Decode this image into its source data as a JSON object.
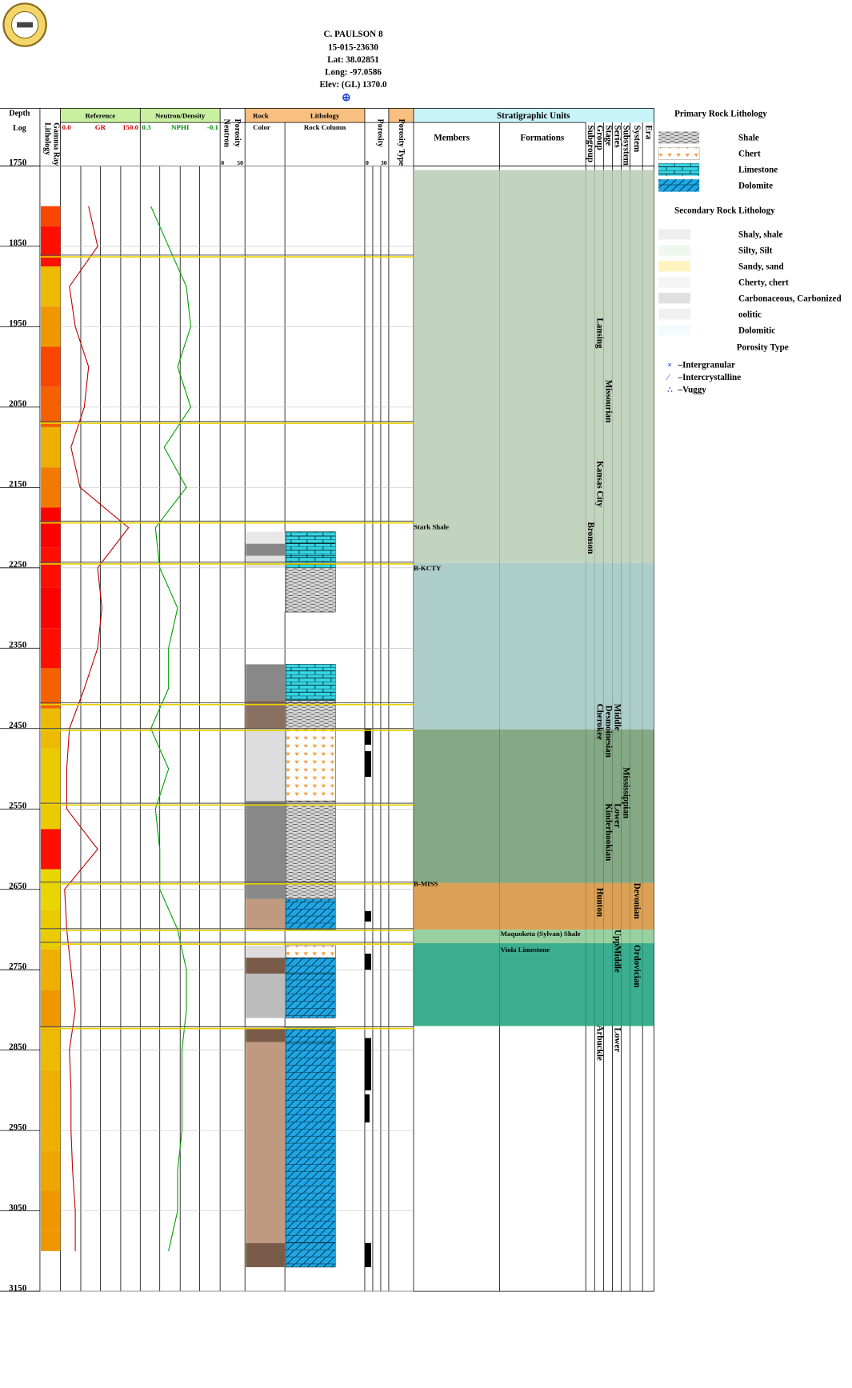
{
  "header": {
    "well": "C. PAULSON 8",
    "api": "15-015-23630",
    "lat": "Lat: 38.02851",
    "long": "Long: -97.0586",
    "elev": "Elev: (GL) 1370.0",
    "marker": "⊕"
  },
  "tracks": {
    "depth": [
      "Depth",
      "Log"
    ],
    "gamma": [
      "Lithology",
      "Gamma Ray"
    ],
    "reference": {
      "title": "Reference",
      "min": "0.0",
      "curve": "GR",
      "max": "150.0"
    },
    "neutron": {
      "title": "Neutron/Density",
      "min": "0.3",
      "curve": "NPHI",
      "max": "-0.1"
    },
    "nporosity": {
      "title": [
        "Neutron",
        "Porosity"
      ],
      "min": "0",
      "max": "50"
    },
    "rock": {
      "title": "Rock",
      "sub": "Color"
    },
    "lithology": {
      "title": "Lithology",
      "sub": "Rock Column"
    },
    "porosity": {
      "title": "Porosity",
      "min": "0",
      "max": "30"
    },
    "ptype": "Porosity Type",
    "strat": {
      "title": "Stratigraphic Units",
      "members": "Members",
      "formations": "Formations"
    }
  },
  "depth_range": [
    1750,
    3150
  ],
  "depth_ticks": [
    1750,
    1850,
    1950,
    2050,
    2150,
    2250,
    2350,
    2450,
    2550,
    2650,
    2750,
    2850,
    2950,
    3050,
    3150
  ],
  "gr_range": [
    0,
    150
  ],
  "nphi_range": [
    0.3,
    -0.1
  ],
  "porosity_range": [
    0,
    30
  ],
  "log": {
    "depths": [
      1800,
      1850,
      1900,
      1950,
      2000,
      2050,
      2100,
      2150,
      2200,
      2250,
      2300,
      2350,
      2400,
      2450,
      2500,
      2550,
      2600,
      2650,
      2700,
      2750,
      2800,
      2850,
      2900,
      2950,
      3000,
      3050,
      3100
    ],
    "gr": [
      53,
      70,
      17,
      28,
      53,
      45,
      20,
      37,
      128,
      70,
      78,
      70,
      45,
      17,
      12,
      12,
      70,
      8,
      12,
      20,
      28,
      17,
      20,
      20,
      23,
      28,
      28
    ],
    "nphi": [
      0.247,
      0.158,
      0.069,
      0.047,
      0.113,
      0.047,
      0.18,
      0.069,
      0.224,
      0.202,
      0.113,
      0.158,
      0.158,
      0.247,
      0.158,
      0.224,
      0.202,
      0.202,
      0.113,
      0.069,
      0.069,
      0.091,
      0.091,
      0.091,
      0.113,
      0.113,
      0.158
    ]
  },
  "tops": [
    1862,
    2069,
    2193,
    2244,
    2419,
    2451,
    2544,
    2642,
    2700,
    2717,
    2822
  ],
  "rock_column": [
    {
      "top": 2205,
      "base": 2220,
      "lith": "limestone",
      "color": "#e8e8e8"
    },
    {
      "top": 2220,
      "base": 2235,
      "lith": "limestone",
      "color": "#888888"
    },
    {
      "top": 2235,
      "base": 2250,
      "lith": "limestone",
      "color": "#e0e0e0"
    },
    {
      "top": 2250,
      "base": 2305,
      "lith": "shale",
      "color": "#ffffff"
    },
    {
      "top": 2370,
      "base": 2415,
      "lith": "limestone",
      "color": "#888888"
    },
    {
      "top": 2415,
      "base": 2450,
      "lith": "shale",
      "color": "#8a7060"
    },
    {
      "top": 2450,
      "base": 2540,
      "lith": "chert",
      "color": "#dddddd"
    },
    {
      "top": 2540,
      "base": 2662,
      "lith": "shale",
      "color": "#888888"
    },
    {
      "top": 2662,
      "base": 2700,
      "lith": "dolomite",
      "color": "#c09a80"
    },
    {
      "top": 2720,
      "base": 2735,
      "lith": "chert",
      "color": "#dddddd"
    },
    {
      "top": 2735,
      "base": 2755,
      "lith": "dolomite",
      "color": "#7a5a48"
    },
    {
      "top": 2755,
      "base": 2810,
      "lith": "dolomite",
      "color": "#bbbbbb"
    },
    {
      "top": 2822,
      "base": 2840,
      "lith": "dolomite",
      "color": "#7a5a48"
    },
    {
      "top": 2840,
      "base": 3090,
      "lith": "dolomite",
      "color": "#c09a80"
    },
    {
      "top": 3090,
      "base": 3120,
      "lith": "dolomite",
      "color": "#7a5a48"
    }
  ],
  "porosity_bars": [
    {
      "top": 2450,
      "base": 2470,
      "value": 8
    },
    {
      "top": 2478,
      "base": 2510,
      "value": 8
    },
    {
      "top": 2677,
      "base": 2690,
      "value": 8
    },
    {
      "top": 2730,
      "base": 2750,
      "value": 8
    },
    {
      "top": 2835,
      "base": 2900,
      "value": 8
    },
    {
      "top": 2905,
      "base": 2940,
      "value": 6
    },
    {
      "top": 3090,
      "base": 3120,
      "value": 8
    }
  ],
  "zones": [
    {
      "top": 1755,
      "base": 2244,
      "color": "#b7cbb3"
    },
    {
      "top": 2244,
      "base": 2451,
      "color": "#9fc4c0"
    },
    {
      "top": 2451,
      "base": 2642,
      "color": "#6e9a6e"
    },
    {
      "top": 2642,
      "base": 2700,
      "color": "#d4903a"
    },
    {
      "top": 2700,
      "base": 2717,
      "color": "#86c98e"
    },
    {
      "top": 2717,
      "base": 2820,
      "color": "#18a07a"
    }
  ],
  "members": [
    {
      "name": "Stark Shale",
      "depth": 2200
    },
    {
      "name": "B-KCTY",
      "depth": 2251
    },
    {
      "name": "B-MISS",
      "depth": 2644
    }
  ],
  "formations": [
    {
      "name": "Maquoketa (Sylvan) Shale",
      "depth": 2706
    },
    {
      "name": "Viola Limestone",
      "depth": 2726
    }
  ],
  "strat_columns": [
    {
      "name": "Subgroup",
      "units": [
        {
          "name": "Bronson",
          "top": 2193
        }
      ]
    },
    {
      "name": "Group",
      "units": [
        {
          "name": "Lansing",
          "top": 1939
        },
        {
          "name": "Kansas City",
          "top": 2117
        },
        {
          "name": "Cherokee",
          "top": 2419
        },
        {
          "name": "Hunton",
          "top": 2648
        },
        {
          "name": "Arbuckle",
          "top": 2819
        }
      ]
    },
    {
      "name": "Stage",
      "units": [
        {
          "name": "Missourian",
          "top": 2016
        },
        {
          "name": "Desmoinesian",
          "top": 2421
        },
        {
          "name": "Kinderhookian",
          "top": 2543
        }
      ]
    },
    {
      "name": "Series",
      "units": [
        {
          "name": "Middle",
          "top": 2419
        },
        {
          "name": "Lower",
          "top": 2543
        },
        {
          "name": "Upp",
          "top": 2700
        },
        {
          "name": "Middle",
          "top": 2720
        },
        {
          "name": "Lower",
          "top": 2822
        }
      ]
    },
    {
      "name": "Subsystem",
      "units": [
        {
          "name": "Mississippian",
          "top": 2498
        }
      ]
    },
    {
      "name": "System",
      "units": [
        {
          "name": "Devonian",
          "top": 2642
        },
        {
          "name": "Ordovician",
          "top": 2719
        }
      ]
    },
    {
      "name": "Era",
      "units": []
    }
  ],
  "legend": {
    "primary_title": "Primary Rock Lithology",
    "primary": [
      "Shale",
      "Chert",
      "Limestone",
      "Dolomite"
    ],
    "secondary_title": "Secondary Rock Lithology",
    "secondary": [
      "Shaly, shale",
      "Silty, Silt",
      "Sandy, sand",
      "Cherty, chert",
      "Carbonaceous, Carbonized",
      "oolitic",
      "Dolomitic"
    ],
    "porosity_title": "Porosity Type",
    "porosity": [
      "–Intergranular",
      "–Intercrystalline",
      "–Vuggy"
    ]
  }
}
